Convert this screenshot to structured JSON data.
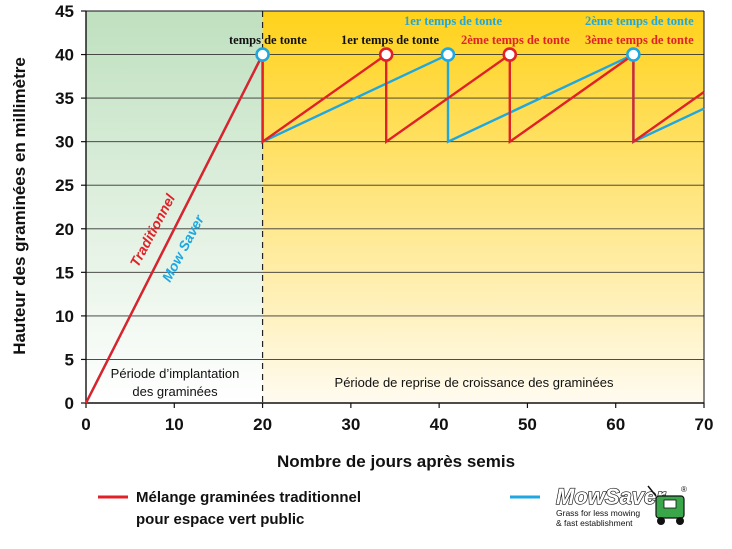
{
  "chart_data": {
    "type": "line",
    "xlabel": "Nombre de jours après semis",
    "ylabel": "Hauteur des graminées en millimètre",
    "xlim": [
      0,
      70
    ],
    "ylim": [
      0,
      45
    ],
    "x_ticks": [
      "0",
      "10",
      "20",
      "30",
      "40",
      "50",
      "60",
      "70"
    ],
    "y_ticks": [
      "0",
      "5",
      "10",
      "15",
      "20",
      "25",
      "30",
      "35",
      "40",
      "45"
    ],
    "grid": true,
    "series": [
      {
        "name": "Traditionnel",
        "color": "#e02128",
        "points": [
          [
            0,
            0
          ],
          [
            20,
            40
          ],
          [
            20,
            30
          ],
          [
            34,
            40
          ],
          [
            34,
            30
          ],
          [
            48,
            40
          ],
          [
            48,
            30
          ],
          [
            62,
            40
          ],
          [
            62,
            30
          ],
          [
            70,
            35.7
          ]
        ]
      },
      {
        "name": "Mow Saver",
        "color": "#1ea7e0",
        "points": [
          [
            0,
            0
          ],
          [
            20,
            40
          ],
          [
            20,
            30
          ],
          [
            41,
            40
          ],
          [
            41,
            30
          ],
          [
            62,
            40
          ],
          [
            62,
            30
          ],
          [
            70,
            33.8
          ]
        ]
      }
    ],
    "mow_markers": [
      {
        "x": 20,
        "y": 40,
        "color": "#1ea7e0"
      },
      {
        "x": 34,
        "y": 40,
        "color": "#e02128"
      },
      {
        "x": 41,
        "y": 40,
        "color": "#1ea7e0"
      },
      {
        "x": 48,
        "y": 40,
        "color": "#e02128"
      },
      {
        "x": 62,
        "y": 40,
        "color": "#1ea7e0"
      }
    ],
    "annotations": {
      "temps_de_tonte": "temps de tonte",
      "traditional_first": "1er temps de tonte",
      "mowsaver_first": "1er temps de tonte",
      "traditional_second": "2ème temps de tonte",
      "mowsaver_second": "2ème temps de tonte",
      "traditional_third": "3ème temps de tonte"
    },
    "series_labels": {
      "traditional": "Traditionnel",
      "mowsaver": "Mow Saver"
    },
    "periods": {
      "establishment_line1": "Période d’implantation",
      "establishment_line2": "des graminées",
      "regrowth": "Période de reprise de croissance des graminées"
    },
    "colors": {
      "establishment_band_top": "#bfe0bf",
      "regrowth_band_top": "#ffd21a",
      "traditional": "#e02128",
      "mowsaver": "#1ea7e0"
    }
  },
  "legend": {
    "traditional_line1": "Mélange graminées traditionnel",
    "traditional_line2": "pour espace vert public",
    "mowsaver_logo": "MowSaver",
    "mowsaver_registered": "®",
    "mowsaver_tagline_line1": "Grass for less mowing",
    "mowsaver_tagline_line2": "& fast establishment",
    "mowsaver_logo_icon": "lawn-mower-icon"
  }
}
